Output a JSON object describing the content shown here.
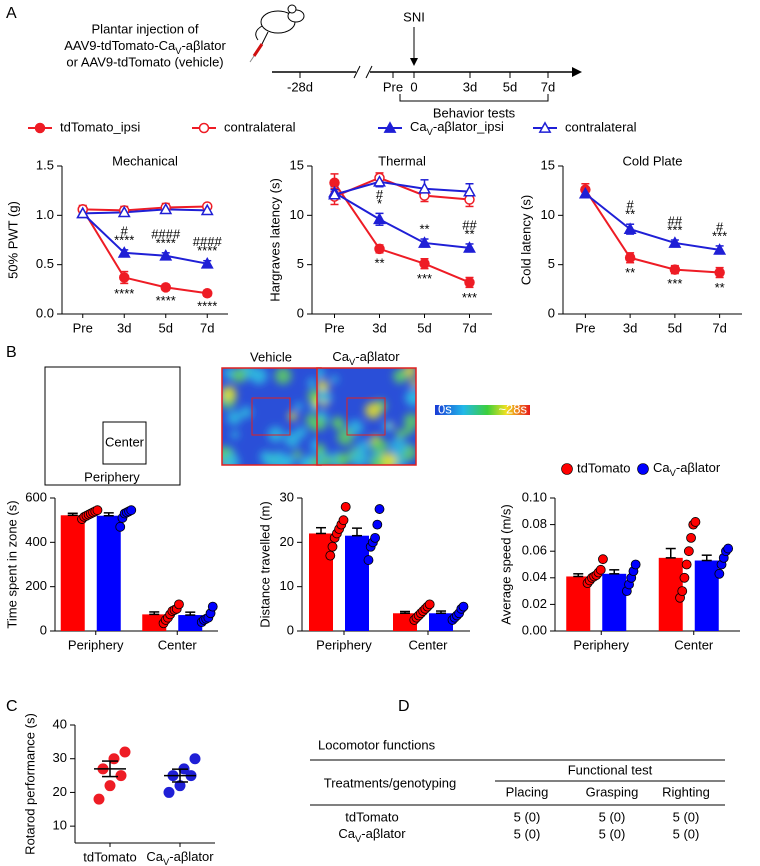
{
  "panel_labels": [
    "A",
    "B",
    "C",
    "D"
  ],
  "timeline": {
    "injection_text": [
      "Plantar injection of",
      [
        "AAV9-tdTomato-Ca",
        "V",
        "-aβlator"
      ],
      "or AAV9-tdTomato (vehicle)"
    ],
    "event": "SNI",
    "ticks": [
      "-28d",
      "Pre",
      "0",
      "3d",
      "5d",
      "7d"
    ],
    "bracket_label": "Behavior tests"
  },
  "chart_data": [
    {
      "type": "line",
      "title": "Mechanical",
      "y_label": "50% PWT (g)",
      "categories": [
        "Pre",
        "3d",
        "5d",
        "7d"
      ],
      "ylim": [
        0,
        1.5
      ],
      "yticks": [
        {
          "value": 0,
          "label": "0.0"
        },
        0.5,
        {
          "value": 1,
          "label": "1.0"
        },
        1.5
      ],
      "series": [
        {
          "name": "tdTomato_ipsi",
          "color": "#ee1c25",
          "marker": "circle",
          "filled": true,
          "values": [
            1.06,
            0.37,
            0.27,
            0.21
          ],
          "errors": [
            0.04,
            0.06,
            0.03,
            0.03
          ],
          "annotations": [
            null,
            [
              "****"
            ],
            [
              "****"
            ],
            [
              "****"
            ]
          ],
          "annotation_side": "below"
        },
        {
          "name": "contralateral",
          "color": "#ee1c25",
          "marker": "circle",
          "filled": false,
          "values": [
            1.06,
            1.05,
            1.08,
            1.09
          ],
          "errors": [
            0.03,
            0.04,
            0.04,
            0.02
          ]
        },
        {
          "name": [
            "Ca",
            "V",
            "-aβlator_ipsi"
          ],
          "color": "#1f1fd6",
          "marker": "triangle",
          "filled": true,
          "values": [
            1.02,
            0.62,
            0.59,
            0.51
          ],
          "errors": [
            0.02,
            0.03,
            0.03,
            0.03
          ],
          "annotations": [
            null,
            [
              "#",
              "****"
            ],
            [
              "####",
              "****"
            ],
            [
              "####",
              "****"
            ]
          ],
          "annotation_side": "above"
        },
        {
          "name": "contralateral",
          "color": "#1f1fd6",
          "marker": "triangle",
          "filled": false,
          "values": [
            1.02,
            1.03,
            1.06,
            1.05
          ],
          "errors": [
            0.02,
            0.03,
            0.03,
            0.03
          ]
        }
      ]
    },
    {
      "type": "line",
      "title": "Thermal",
      "y_label": "Hargraves latency (s)",
      "categories": [
        "Pre",
        "3d",
        "5d",
        "7d"
      ],
      "ylim": [
        0,
        15
      ],
      "yticks": [
        0,
        5,
        10,
        15
      ],
      "series": [
        {
          "color": "#ee1c25",
          "marker": "circle",
          "filled": true,
          "values": [
            13.3,
            6.6,
            5.1,
            3.2
          ],
          "errors": [
            0.9,
            0.4,
            0.5,
            0.5
          ],
          "annotations": [
            null,
            [
              "**"
            ],
            [
              "***"
            ],
            [
              "***"
            ]
          ],
          "annotation_side": "below"
        },
        {
          "color": "#ee1c25",
          "marker": "circle",
          "filled": false,
          "values": [
            11.9,
            13.8,
            12.0,
            11.6
          ],
          "errors": [
            0.8,
            0.5,
            0.6,
            0.7
          ]
        },
        {
          "color": "#1f1fd6",
          "marker": "triangle",
          "filled": true,
          "values": [
            12.3,
            9.6,
            7.2,
            6.7
          ],
          "errors": [
            0.6,
            0.6,
            0.4,
            0.4
          ],
          "annotations": [
            null,
            [
              "#",
              "*"
            ],
            [
              "**"
            ],
            [
              "##",
              "**"
            ]
          ],
          "annotation_side": "above"
        },
        {
          "color": "#1f1fd6",
          "marker": "triangle",
          "filled": false,
          "values": [
            12.1,
            13.4,
            12.7,
            12.4
          ],
          "errors": [
            0.5,
            0.5,
            0.9,
            0.8
          ]
        }
      ]
    },
    {
      "type": "line",
      "title": "Cold Plate",
      "y_label": "Cold latency (s)",
      "categories": [
        "Pre",
        "3d",
        "5d",
        "7d"
      ],
      "ylim": [
        0,
        15
      ],
      "yticks": [
        0,
        5,
        10,
        15
      ],
      "series": [
        {
          "color": "#ee1c25",
          "marker": "circle",
          "filled": true,
          "values": [
            12.6,
            5.7,
            4.5,
            4.2
          ],
          "errors": [
            0.6,
            0.5,
            0.4,
            0.5
          ],
          "annotations": [
            null,
            [
              "**"
            ],
            [
              "***"
            ],
            [
              "**"
            ]
          ],
          "annotation_side": "below"
        },
        {
          "color": "#1f1fd6",
          "marker": "triangle",
          "filled": true,
          "values": [
            12.2,
            8.6,
            7.2,
            6.5
          ],
          "errors": [
            0.4,
            0.5,
            0.3,
            0.4
          ],
          "annotations": [
            null,
            [
              "#",
              "**"
            ],
            [
              "##",
              "***"
            ],
            [
              "#",
              "***"
            ]
          ],
          "annotation_side": "above"
        }
      ]
    },
    {
      "type": "bar",
      "y_label": "Time spent in zone (s)",
      "categories": [
        "Periphery",
        "Center"
      ],
      "ylim": [
        0,
        600
      ],
      "yticks": [
        0,
        200,
        400,
        600
      ],
      "series": [
        {
          "color": "#ff0000",
          "values": [
            522,
            75
          ],
          "errors": [
            9,
            11
          ],
          "points": [
            [
              505,
              515,
              520,
              525,
              530,
              535,
              540,
              545
            ],
            [
              35,
              50,
              60,
              75,
              90,
              95,
              100,
              120
            ]
          ]
        },
        {
          "color": "#0000ff",
          "values": [
            520,
            72
          ],
          "errors": [
            13,
            13
          ],
          "points": [
            [
              470,
              510,
              530,
              535,
              540,
              545
            ],
            [
              40,
              50,
              55,
              60,
              80,
              110
            ]
          ]
        }
      ]
    },
    {
      "type": "bar",
      "y_label": "Distance travelled (m)",
      "categories": [
        "Periphery",
        "Center"
      ],
      "ylim": [
        0,
        30
      ],
      "yticks": [
        0,
        10,
        20,
        30
      ],
      "series": [
        {
          "color": "#ff0000",
          "values": [
            22,
            4
          ],
          "errors": [
            1.3,
            0.4
          ],
          "points": [
            [
              17,
              19,
              21,
              22,
              23,
              24,
              25,
              28
            ],
            [
              2.5,
              3,
              3.5,
              4,
              4.5,
              5,
              5.5,
              6
            ]
          ]
        },
        {
          "color": "#0000ff",
          "values": [
            21.5,
            4
          ],
          "errors": [
            1.7,
            0.5
          ],
          "points": [
            [
              16,
              19,
              20,
              21,
              24,
              27.5
            ],
            [
              2.5,
              3,
              3.5,
              4,
              5,
              5.5
            ]
          ]
        }
      ]
    },
    {
      "type": "bar",
      "y_label": "Average speed (m/s)",
      "categories": [
        "Periphery",
        "Center"
      ],
      "ylim": [
        0,
        0.1
      ],
      "yticks": [
        {
          "value": 0,
          "label": "0.00"
        },
        0.02,
        0.04,
        0.06,
        0.08,
        {
          "value": 0.1,
          "label": "0.10"
        }
      ],
      "series": [
        {
          "name": "tdTomato",
          "color": "#ff0000",
          "values": [
            0.041,
            0.055
          ],
          "errors": [
            0.002,
            0.007
          ],
          "points": [
            [
              0.036,
              0.038,
              0.04,
              0.041,
              0.042,
              0.044,
              0.046,
              0.054
            ],
            [
              0.025,
              0.03,
              0.04,
              0.05,
              0.06,
              0.07,
              0.08,
              0.082
            ]
          ]
        },
        {
          "name": [
            "Ca",
            "V",
            "-aβlator"
          ],
          "color": "#0000ff",
          "values": [
            0.043,
            0.053
          ],
          "errors": [
            0.003,
            0.004
          ],
          "points": [
            [
              0.03,
              0.035,
              0.04,
              0.045,
              0.05
            ],
            [
              0.043,
              0.05,
              0.055,
              0.06,
              0.062
            ]
          ]
        }
      ]
    },
    {
      "type": "dot",
      "y_label": "Rotarod performance (s)",
      "categories": [
        "tdTomato",
        [
          "Ca",
          "V",
          "-aβlator"
        ]
      ],
      "colors": [
        "#ee1c25",
        "#1f1fd6"
      ],
      "ylim": [
        5,
        40
      ],
      "yticks": [
        10,
        20,
        30,
        40
      ],
      "values": [
        27,
        25
      ],
      "errors": [
        2.3,
        1.9
      ],
      "points": [
        [
          18,
          22,
          25,
          27,
          30,
          32
        ],
        [
          20,
          22,
          25,
          25,
          27,
          30
        ]
      ]
    }
  ],
  "open_field": {
    "zones": [
      "Center",
      "Periphery"
    ],
    "maps": [
      "Vehicle",
      [
        "Ca",
        "V",
        "-aβlator"
      ]
    ],
    "colorbar": [
      "0s",
      "~28s"
    ]
  },
  "table": {
    "title": "Locomotor functions",
    "row_header": "Treatments/genotyping",
    "group_header": "Functional test",
    "columns": [
      "Placing",
      "Grasping",
      "Righting"
    ],
    "rows": [
      {
        "label": "tdTomato",
        "cells": [
          "5 (0)",
          "5 (0)",
          "5 (0)"
        ]
      },
      {
        "label": [
          "Ca",
          "V",
          "-aβlator"
        ],
        "cells": [
          "5 (0)",
          "5 (0)",
          "5 (0)"
        ]
      }
    ]
  }
}
